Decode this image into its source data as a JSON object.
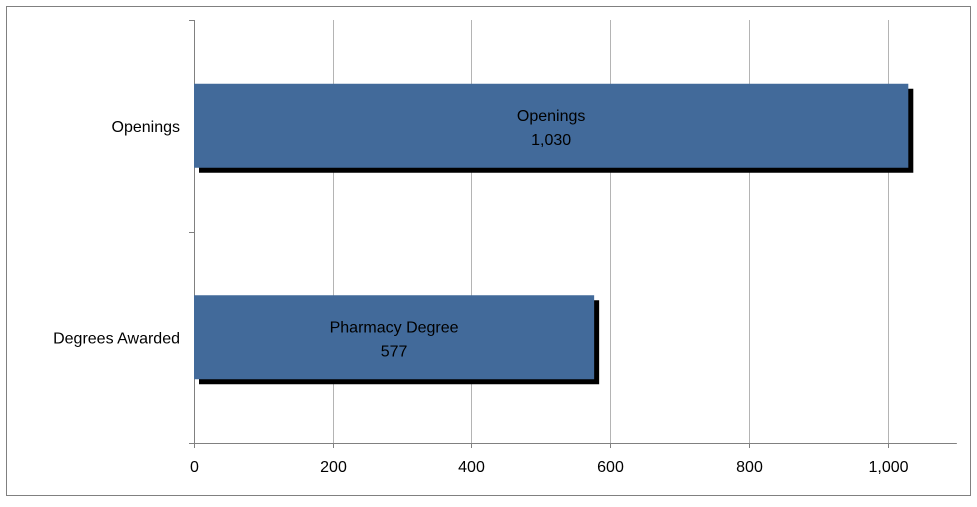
{
  "chart_data": {
    "type": "bar",
    "orientation": "horizontal",
    "categories": [
      "Openings",
      "Degrees Awarded"
    ],
    "values": [
      1030,
      577
    ],
    "bar_labels": [
      {
        "name": "Openings",
        "value": "1,030"
      },
      {
        "name": "Pharmacy Degree",
        "value": "577"
      }
    ],
    "x_ticks": [
      "0",
      "200",
      "400",
      "600",
      "800",
      "1,000"
    ],
    "x_tick_values": [
      0,
      200,
      400,
      600,
      800,
      1000
    ],
    "xlim": [
      0,
      1100
    ],
    "grid": "vertical",
    "legend": "none",
    "colors": {
      "bar": "#426a9a",
      "bar_shadow": "#000000",
      "grid": "#b4b4b4",
      "axis": "#808080",
      "frame": "#808080",
      "label_text": "#000000"
    }
  }
}
